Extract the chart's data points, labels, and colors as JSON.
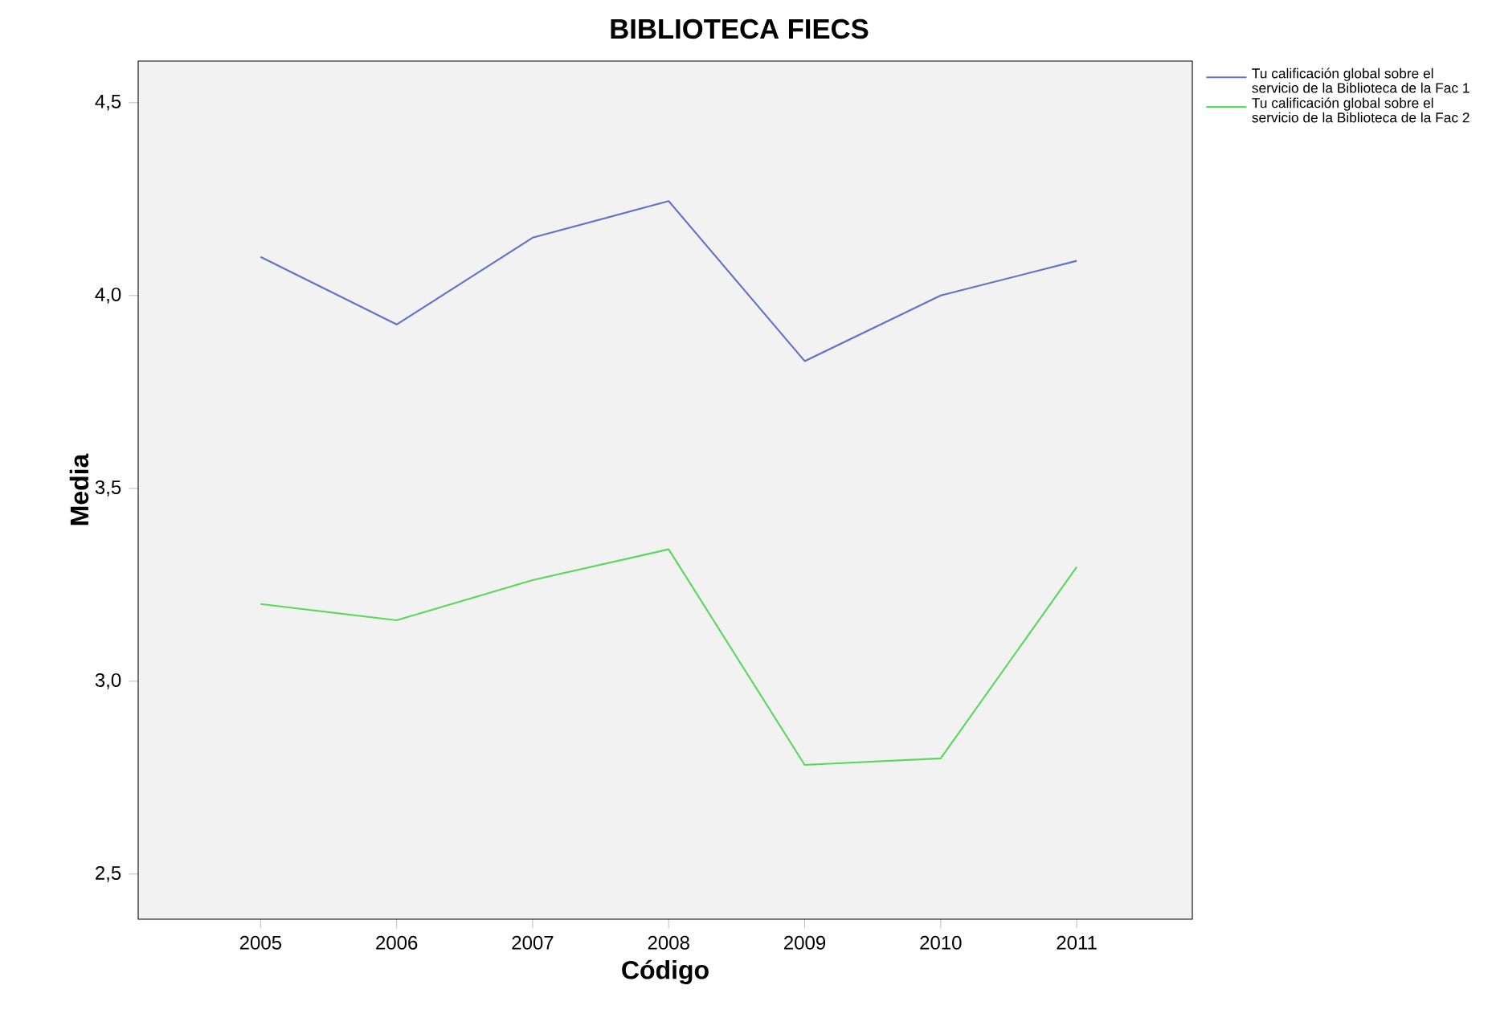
{
  "chart_data": {
    "type": "line",
    "title": "BIBLIOTECA FIECS",
    "xlabel": "Código",
    "ylabel": "Media",
    "categories": [
      "2005",
      "2006",
      "2007",
      "2008",
      "2009",
      "2010",
      "2011"
    ],
    "series": [
      {
        "name": "Tu  calificación global sobre el servicio de la Biblioteca de la Fac 1",
        "color": "#6272c8",
        "values": [
          4.1,
          3.925,
          4.15,
          4.245,
          3.83,
          4.0,
          4.09
        ]
      },
      {
        "name": "Tu  calificación global sobre el servicio de la Biblioteca de la Fac 2",
        "color": "#5cd65c",
        "values": [
          3.2,
          3.158,
          3.262,
          3.342,
          2.783,
          2.8,
          3.296
        ]
      }
    ],
    "ylim": [
      2.383,
      4.608
    ],
    "yticks": [
      {
        "value": 2.5,
        "label": "2,5"
      },
      {
        "value": 3.0,
        "label": "3,0"
      },
      {
        "value": 3.5,
        "label": "3,5"
      },
      {
        "value": 4.0,
        "label": "4,0"
      },
      {
        "value": 4.5,
        "label": "4,5"
      }
    ],
    "grid": false,
    "legend": "top right",
    "marker": "none",
    "line_style": "solid"
  }
}
